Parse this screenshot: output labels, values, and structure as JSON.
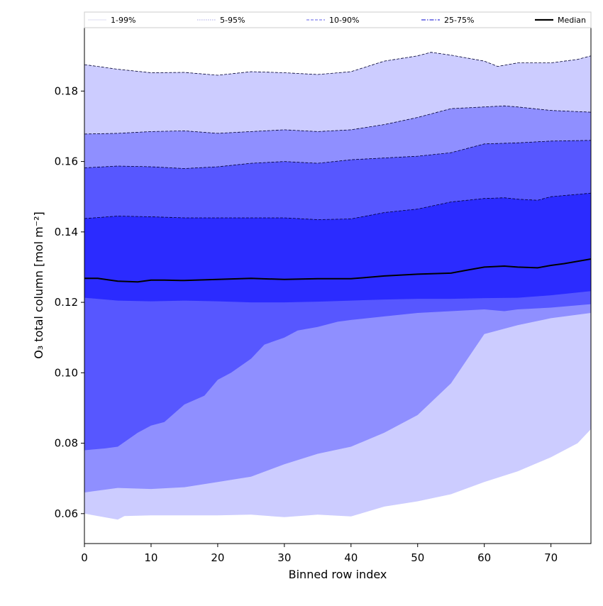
{
  "chart_data": {
    "type": "area",
    "xlabel": "Binned row index",
    "ylabel": "O₃ total column [mol m⁻²]",
    "xlim": [
      0,
      76
    ],
    "ylim": [
      0.0515,
      0.198
    ],
    "xticks": [
      0,
      10,
      20,
      30,
      40,
      50,
      60,
      70
    ],
    "yticks": [
      0.06,
      0.08,
      0.1,
      0.12,
      0.14,
      0.16,
      0.18
    ],
    "ytick_labels": [
      "0.06",
      "0.08",
      "0.10",
      "0.12",
      "0.14",
      "0.16",
      "0.18"
    ],
    "xtick_labels": [
      "0",
      "10",
      "20",
      "30",
      "40",
      "50",
      "60",
      "70"
    ],
    "legend": [
      {
        "label": "1-99%",
        "color": "#dcdcf2",
        "style": "thin"
      },
      {
        "label": "5-95%",
        "color": "#a8a8e6",
        "style": "dotted"
      },
      {
        "label": "10-90%",
        "color": "#8080ee",
        "style": "dashed"
      },
      {
        "label": "25-75%",
        "color": "#5858e0",
        "style": "dashdot"
      },
      {
        "label": "Median",
        "color": "#000000",
        "style": "solid"
      }
    ],
    "bands": [
      {
        "name": "1-99%",
        "fill": "#ccccff",
        "lower": {
          "x": [
            0,
            5,
            6,
            10,
            20,
            25,
            30,
            35,
            40,
            45,
            50,
            55,
            60,
            65,
            70,
            74,
            76
          ],
          "y": [
            0.06,
            0.0583,
            0.0593,
            0.0595,
            0.0595,
            0.0597,
            0.059,
            0.0597,
            0.0592,
            0.062,
            0.0635,
            0.0655,
            0.069,
            0.072,
            0.076,
            0.08,
            0.084
          ]
        },
        "upper": {
          "x": [
            0,
            2,
            5,
            10,
            15,
            20,
            25,
            30,
            35,
            40,
            45,
            50,
            52,
            55,
            60,
            62,
            65,
            70,
            74,
            76
          ],
          "y": [
            0.1875,
            0.187,
            0.1862,
            0.1852,
            0.1853,
            0.1845,
            0.1855,
            0.1852,
            0.1847,
            0.1855,
            0.1885,
            0.19,
            0.191,
            0.1902,
            0.1885,
            0.187,
            0.188,
            0.188,
            0.189,
            0.19
          ]
        }
      },
      {
        "name": "5-95%",
        "fill": "#8f8fff",
        "lower": {
          "x": [
            0,
            5,
            10,
            15,
            20,
            25,
            30,
            35,
            40,
            45,
            50,
            55,
            60,
            65,
            70,
            76
          ],
          "y": [
            0.066,
            0.0673,
            0.067,
            0.0675,
            0.069,
            0.0705,
            0.074,
            0.077,
            0.079,
            0.083,
            0.088,
            0.097,
            0.111,
            0.1135,
            0.1155,
            0.117
          ]
        },
        "upper": {
          "x": [
            0,
            5,
            10,
            15,
            20,
            25,
            30,
            35,
            40,
            45,
            50,
            55,
            60,
            63,
            65,
            70,
            76
          ],
          "y": [
            0.1678,
            0.168,
            0.1685,
            0.1687,
            0.168,
            0.1685,
            0.169,
            0.1685,
            0.169,
            0.1705,
            0.1725,
            0.175,
            0.1755,
            0.1758,
            0.1755,
            0.1745,
            0.174
          ]
        }
      },
      {
        "name": "10-90%",
        "fill": "#5757ff",
        "lower": {
          "x": [
            0,
            3,
            5,
            8,
            10,
            12,
            15,
            18,
            20,
            22,
            25,
            27,
            30,
            32,
            35,
            38,
            40,
            45,
            50,
            55,
            60,
            63,
            65,
            70,
            76
          ],
          "y": [
            0.078,
            0.0785,
            0.079,
            0.083,
            0.085,
            0.086,
            0.091,
            0.0935,
            0.098,
            0.1,
            0.104,
            0.108,
            0.11,
            0.112,
            0.113,
            0.1145,
            0.115,
            0.116,
            0.117,
            0.1175,
            0.118,
            0.1175,
            0.118,
            0.1185,
            0.1195
          ]
        },
        "upper": {
          "x": [
            0,
            5,
            10,
            15,
            20,
            25,
            30,
            35,
            40,
            45,
            50,
            55,
            60,
            65,
            70,
            76
          ],
          "y": [
            0.1582,
            0.1587,
            0.1585,
            0.158,
            0.1585,
            0.1595,
            0.16,
            0.1595,
            0.1605,
            0.161,
            0.1615,
            0.1625,
            0.165,
            0.1653,
            0.1658,
            0.166
          ]
        }
      },
      {
        "name": "25-75%",
        "fill": "#2b2bff",
        "lower": {
          "x": [
            0,
            5,
            10,
            15,
            20,
            25,
            30,
            35,
            40,
            45,
            50,
            55,
            60,
            65,
            70,
            76
          ],
          "y": [
            0.1213,
            0.1205,
            0.1203,
            0.1205,
            0.1203,
            0.12,
            0.12,
            0.1202,
            0.1205,
            0.1208,
            0.121,
            0.121,
            0.1212,
            0.1213,
            0.122,
            0.1232
          ]
        },
        "upper": {
          "x": [
            0,
            5,
            10,
            15,
            20,
            25,
            30,
            35,
            40,
            45,
            50,
            55,
            60,
            63,
            65,
            68,
            70,
            76
          ],
          "y": [
            0.1438,
            0.1445,
            0.1443,
            0.144,
            0.144,
            0.144,
            0.144,
            0.1435,
            0.1437,
            0.1455,
            0.1465,
            0.1485,
            0.1495,
            0.1497,
            0.1493,
            0.149,
            0.15,
            0.151
          ]
        }
      }
    ],
    "median": {
      "name": "Median",
      "color": "#000000",
      "x": [
        0,
        2,
        5,
        8,
        10,
        12,
        15,
        20,
        25,
        30,
        35,
        40,
        45,
        50,
        55,
        57,
        60,
        63,
        65,
        68,
        70,
        72,
        76
      ],
      "y": [
        0.1268,
        0.1268,
        0.126,
        0.1258,
        0.1263,
        0.1263,
        0.1262,
        0.1265,
        0.1268,
        0.1265,
        0.1267,
        0.1267,
        0.1275,
        0.128,
        0.1283,
        0.129,
        0.13,
        0.1303,
        0.13,
        0.1298,
        0.1305,
        0.131,
        0.1323
      ]
    }
  }
}
